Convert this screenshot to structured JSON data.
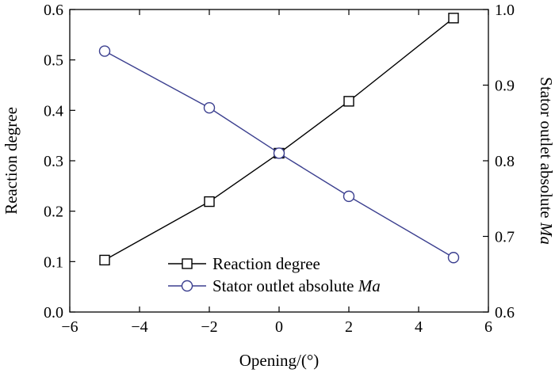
{
  "chart_data": {
    "type": "line",
    "title": "",
    "xlabel": "Opening/(°)",
    "ylabel_left": "Reaction degree",
    "ylabel_right_prefix": "Stator outlet absolute ",
    "ylabel_right_italic": "Ma",
    "xlim": [
      -6,
      6
    ],
    "ylim_left": [
      0.0,
      0.6
    ],
    "ylim_right": [
      0.6,
      1.0
    ],
    "x_ticks": [
      -6,
      -4,
      -2,
      0,
      2,
      4,
      6
    ],
    "x_tick_labels": [
      "−6",
      "−4",
      "−2",
      "0",
      "2",
      "4",
      "6"
    ],
    "y_left_ticks": [
      0.0,
      0.1,
      0.2,
      0.3,
      0.4,
      0.5,
      0.6
    ],
    "y_left_tick_labels": [
      "0.0",
      "0.1",
      "0.2",
      "0.3",
      "0.4",
      "0.5",
      "0.6"
    ],
    "y_right_ticks": [
      0.6,
      0.7,
      0.8,
      0.9,
      1.0
    ],
    "y_right_tick_labels": [
      "0.6",
      "0.7",
      "0.8",
      "0.9",
      "1.0"
    ],
    "grid": false,
    "legend_position": "bottom-center",
    "series": [
      {
        "name": "Reaction degree",
        "axis": "left",
        "marker": "square",
        "color": "#000000",
        "x": [
          -5,
          -2,
          0,
          2,
          5
        ],
        "y": [
          0.103,
          0.219,
          0.315,
          0.418,
          0.583
        ]
      },
      {
        "name_prefix": "Stator outlet absolute ",
        "name_italic": "Ma",
        "axis": "right",
        "marker": "circle",
        "color": "#3b3f8f",
        "x": [
          -5,
          -2,
          0,
          2,
          5
        ],
        "y": [
          0.945,
          0.87,
          0.81,
          0.753,
          0.672
        ]
      }
    ]
  }
}
